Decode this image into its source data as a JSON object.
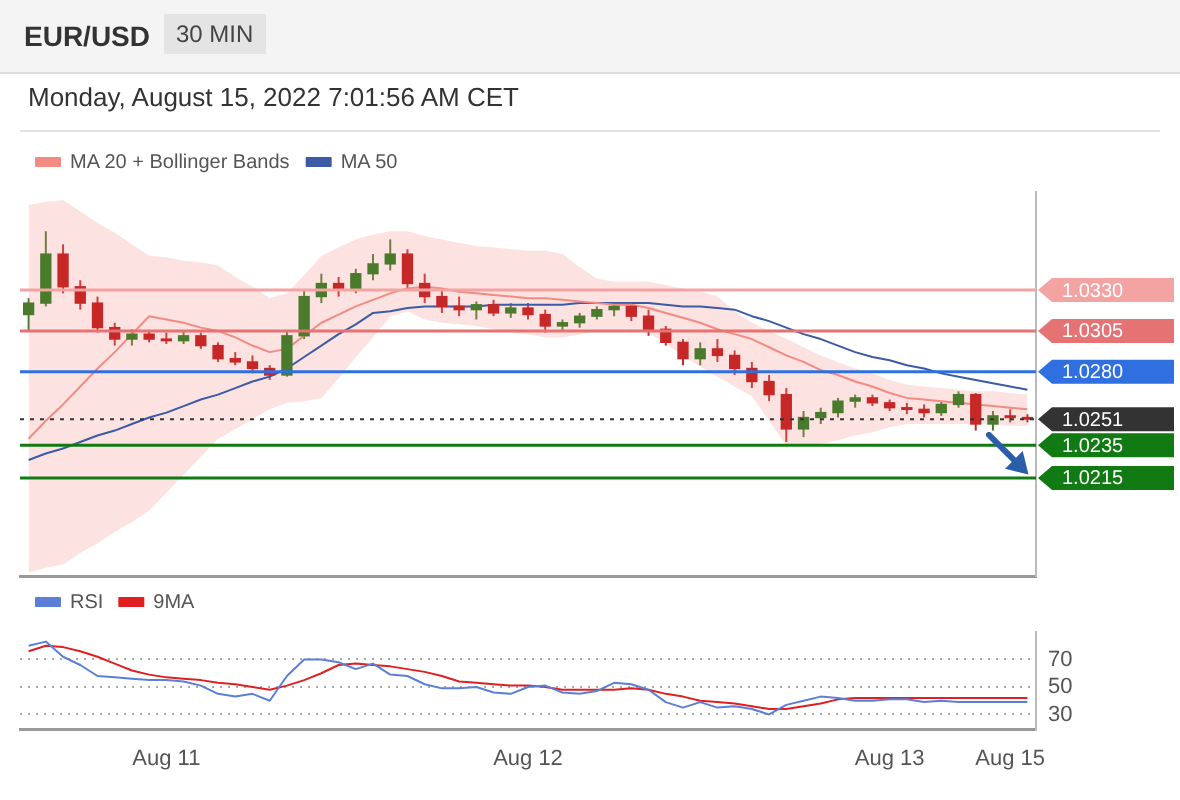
{
  "chart_data": [
    {
      "type": "candlestick",
      "title": "EUR/USD",
      "subtitle": "30 MIN",
      "annotations": [
        "Monday, August 15, 2022 7:01:56 AM CET"
      ],
      "categories": [
        null,
        null,
        null,
        null,
        null,
        null,
        null,
        null,
        null,
        null,
        null,
        null,
        null,
        null,
        null,
        null,
        null,
        null,
        null,
        null,
        null,
        null,
        null,
        null,
        null,
        null,
        null,
        null,
        null,
        null,
        null,
        null,
        null,
        null,
        null,
        null,
        null,
        null,
        null,
        null,
        null,
        null,
        null,
        null,
        null,
        null,
        null,
        null,
        null,
        null,
        null,
        null,
        null,
        null,
        null,
        null,
        null,
        null,
        null
      ],
      "ohlc": [
        [
          1.0315,
          1.0325,
          1.0305,
          1.0322
        ],
        [
          1.0322,
          1.0366,
          1.032,
          1.0352
        ],
        [
          1.0352,
          1.0358,
          1.0328,
          1.0332
        ],
        [
          1.0332,
          1.0336,
          1.0318,
          1.0322
        ],
        [
          1.0322,
          1.0326,
          1.0304,
          1.0307
        ],
        [
          1.0307,
          1.031,
          1.0296,
          1.03
        ],
        [
          1.03,
          1.0306,
          1.0296,
          1.0303
        ],
        [
          1.0303,
          1.0305,
          1.0298,
          1.03
        ],
        [
          1.03,
          1.0304,
          1.0297,
          1.0299
        ],
        [
          1.0299,
          1.0305,
          1.0297,
          1.0302
        ],
        [
          1.0302,
          1.0304,
          1.0294,
          1.0296
        ],
        [
          1.0296,
          1.0298,
          1.0286,
          1.0288
        ],
        [
          1.0288,
          1.0292,
          1.0284,
          1.0286
        ],
        [
          1.0286,
          1.029,
          1.0279,
          1.0282
        ],
        [
          1.0282,
          1.0284,
          1.0275,
          1.0278
        ],
        [
          1.0278,
          1.0305,
          1.0277,
          1.0302
        ],
        [
          1.0302,
          1.033,
          1.03,
          1.0326
        ],
        [
          1.0326,
          1.034,
          1.0322,
          1.0334
        ],
        [
          1.0334,
          1.0338,
          1.0326,
          1.033
        ],
        [
          1.033,
          1.0343,
          1.0328,
          1.034
        ],
        [
          1.034,
          1.0352,
          1.0336,
          1.0346
        ],
        [
          1.0346,
          1.0361,
          1.0342,
          1.0352
        ],
        [
          1.0352,
          1.0355,
          1.033,
          1.0334
        ],
        [
          1.0334,
          1.034,
          1.0322,
          1.0326
        ],
        [
          1.0326,
          1.033,
          1.0316,
          1.032
        ],
        [
          1.032,
          1.0326,
          1.0314,
          1.0318
        ],
        [
          1.0318,
          1.0323,
          1.0312,
          1.0321
        ],
        [
          1.0321,
          1.0324,
          1.0314,
          1.0316
        ],
        [
          1.0316,
          1.0322,
          1.0313,
          1.0319
        ],
        [
          1.0319,
          1.0322,
          1.0312,
          1.0315
        ],
        [
          1.0315,
          1.0318,
          1.0304,
          1.0308
        ],
        [
          1.0308,
          1.0312,
          1.0305,
          1.031
        ],
        [
          1.031,
          1.0316,
          1.0307,
          1.0314
        ],
        [
          1.0314,
          1.032,
          1.0312,
          1.0318
        ],
        [
          1.0318,
          1.0322,
          1.0314,
          1.032
        ],
        [
          1.032,
          1.0322,
          1.0311,
          1.0314
        ],
        [
          1.0314,
          1.0318,
          1.0302,
          1.0306
        ],
        [
          1.0306,
          1.0308,
          1.0296,
          1.0298
        ],
        [
          1.0298,
          1.03,
          1.0284,
          1.0288
        ],
        [
          1.0288,
          1.0298,
          1.0284,
          1.0294
        ],
        [
          1.0294,
          1.03,
          1.0286,
          1.029
        ],
        [
          1.029,
          1.0293,
          1.0278,
          1.0282
        ],
        [
          1.0282,
          1.0286,
          1.027,
          1.0274
        ],
        [
          1.0274,
          1.0278,
          1.0262,
          1.0266
        ],
        [
          1.0266,
          1.027,
          1.0237,
          1.0245
        ],
        [
          1.0245,
          1.0256,
          1.024,
          1.0252
        ],
        [
          1.0252,
          1.0258,
          1.0248,
          1.0255
        ],
        [
          1.0255,
          1.0264,
          1.0252,
          1.0262
        ],
        [
          1.0262,
          1.0266,
          1.0258,
          1.0264
        ],
        [
          1.0264,
          1.0266,
          1.0259,
          1.0261
        ],
        [
          1.0261,
          1.0263,
          1.0256,
          1.0258
        ],
        [
          1.0258,
          1.0261,
          1.0254,
          1.0257
        ],
        [
          1.0257,
          1.026,
          1.0252,
          1.0255
        ],
        [
          1.0255,
          1.0262,
          1.0253,
          1.026
        ],
        [
          1.026,
          1.0268,
          1.0258,
          1.0266
        ],
        [
          1.0266,
          1.0267,
          1.0244,
          1.0248
        ],
        [
          1.0248,
          1.0256,
          1.0244,
          1.0253
        ],
        [
          1.0253,
          1.0257,
          1.0249,
          1.0252
        ],
        [
          1.0252,
          1.0254,
          1.0249,
          1.0251
        ]
      ],
      "colors": [
        "#4a7a2c",
        "#4a7a2c",
        "#c62828",
        "#c62828",
        "#c62828",
        "#c62828",
        "#4a7a2c",
        "#c62828",
        "#c62828",
        "#4a7a2c",
        "#c62828",
        "#c62828",
        "#c62828",
        "#c62828",
        "#c62828",
        "#4a7a2c",
        "#4a7a2c",
        "#4a7a2c",
        "#c62828",
        "#4a7a2c",
        "#4a7a2c",
        "#4a7a2c",
        "#c62828",
        "#c62828",
        "#c62828",
        "#c62828",
        "#4a7a2c",
        "#c62828",
        "#4a7a2c",
        "#c62828",
        "#c62828",
        "#4a7a2c",
        "#4a7a2c",
        "#4a7a2c",
        "#4a7a2c",
        "#c62828",
        "#c62828",
        "#c62828",
        "#c62828",
        "#4a7a2c",
        "#c62828",
        "#c62828",
        "#c62828",
        "#c62828",
        "#c62828",
        "#4a7a2c",
        "#4a7a2c",
        "#4a7a2c",
        "#4a7a2c",
        "#c62828",
        "#c62828",
        "#c62828",
        "#c62828",
        "#4a7a2c",
        "#4a7a2c",
        "#c62828",
        "#4a7a2c",
        "#c62828",
        "#c62828"
      ],
      "series": [
        {
          "name": "MA 20 + Bollinger Bands",
          "type": "line",
          "color": "#f28b82",
          "values": [
            1.0239,
            1.025,
            1.026,
            1.0271,
            1.0282,
            1.0292,
            1.0303,
            1.0314,
            1.0312,
            1.031,
            1.0307,
            1.0305,
            1.0301,
            1.0296,
            1.0292,
            1.0294,
            1.0302,
            1.031,
            1.0315,
            1.032,
            1.0324,
            1.0328,
            1.0331,
            1.0332,
            1.0331,
            1.0329,
            1.0328,
            1.0327,
            1.0326,
            1.0325,
            1.0325,
            1.0324,
            1.0323,
            1.0322,
            1.0321,
            1.0321,
            1.0319,
            1.0316,
            1.0313,
            1.031,
            1.0306,
            1.0303,
            1.03,
            1.0295,
            1.029,
            1.0286,
            1.0281,
            1.0278,
            1.0274,
            1.0271,
            1.0267,
            1.0264,
            1.0263,
            1.0262,
            1.0261,
            1.026,
            1.0259,
            1.0258,
            1.0257
          ],
          "lower": [
            1.0157,
            1.016,
            1.0162,
            1.0169,
            1.0175,
            1.0182,
            1.0188,
            1.0195,
            1.0206,
            1.0217,
            1.0228,
            1.0239,
            1.0245,
            1.0251,
            1.0257,
            1.0261,
            1.0262,
            1.0264,
            1.0276,
            1.0289,
            1.0301,
            1.0314,
            1.0317,
            1.0312,
            1.031,
            1.0309,
            1.0308,
            1.0306,
            1.0304,
            1.0303,
            1.0301,
            1.0301,
            1.0303,
            1.0305,
            1.0305,
            1.0305,
            1.0304,
            1.0297,
            1.029,
            1.0283,
            1.0277,
            1.0271,
            1.0265,
            1.025,
            1.0235,
            1.0235,
            1.0236,
            1.0238,
            1.0241,
            1.0243,
            1.0246,
            1.0248,
            1.0248,
            1.0248,
            1.0248,
            1.0248,
            1.0248,
            1.0247,
            1.0247
          ],
          "upper": [
            1.0382,
            1.0384,
            1.0385,
            1.0378,
            1.0371,
            1.0365,
            1.0358,
            1.0351,
            1.035,
            1.0348,
            1.0347,
            1.0345,
            1.0338,
            1.0332,
            1.0325,
            1.0328,
            1.0339,
            1.0351,
            1.0356,
            1.0361,
            1.0364,
            1.0366,
            1.0366,
            1.0363,
            1.0361,
            1.0359,
            1.0357,
            1.0356,
            1.0355,
            1.0354,
            1.0354,
            1.0352,
            1.0344,
            1.0337,
            1.0335,
            1.0335,
            1.0335,
            1.0333,
            1.0331,
            1.0329,
            1.0326,
            1.0317,
            1.031,
            1.0305,
            1.03,
            1.0295,
            1.029,
            1.0286,
            1.0282,
            1.0279,
            1.0275,
            1.0272,
            1.0271,
            1.027,
            1.0269,
            1.0268,
            1.0268,
            1.0267,
            1.0266
          ]
        },
        {
          "name": "MA 50",
          "type": "line",
          "color": "#3b5ba5",
          "values": [
            1.0226,
            1.023,
            1.0233,
            1.0237,
            1.0241,
            1.0244,
            1.0248,
            1.0252,
            1.0255,
            1.0259,
            1.0263,
            1.0266,
            1.027,
            1.0274,
            1.0277,
            1.0282,
            1.0289,
            1.0296,
            1.0303,
            1.0309,
            1.0316,
            1.0317,
            1.0319,
            1.032,
            1.032,
            1.032,
            1.032,
            1.0321,
            1.0321,
            1.0321,
            1.0321,
            1.0321,
            1.0322,
            1.0322,
            1.0322,
            1.0322,
            1.0322,
            1.0321,
            1.032,
            1.032,
            1.0319,
            1.0318,
            1.0314,
            1.0311,
            1.0307,
            1.0303,
            1.03,
            1.0296,
            1.0292,
            1.0289,
            1.0287,
            1.0284,
            1.0282,
            1.0279,
            1.0277,
            1.0275,
            1.0273,
            1.0271,
            1.0269
          ]
        }
      ],
      "ref_lines": [
        {
          "axis": "y",
          "value": 1.033,
          "label": "1.0330",
          "color": "#f4a3a3"
        },
        {
          "axis": "y",
          "value": 1.0305,
          "label": "1.0305",
          "color": "#e57373"
        },
        {
          "axis": "y",
          "value": 1.028,
          "label": "1.0280",
          "color": "#2f6fe0"
        },
        {
          "axis": "y",
          "value": 1.0251,
          "label": "1.0251",
          "color": "#333333",
          "line_style": "dotted"
        },
        {
          "axis": "y",
          "value": 1.0235,
          "label": "1.0235",
          "color": "#127a12"
        },
        {
          "axis": "y",
          "value": 1.0215,
          "label": "1.0215",
          "color": "#127a12"
        }
      ],
      "ylim": [
        1.0155,
        1.039
      ],
      "legend": "top left"
    },
    {
      "type": "line",
      "categories": [
        null,
        null,
        null,
        null,
        null,
        null,
        null,
        null,
        "Aug 11",
        null,
        null,
        null,
        null,
        null,
        null,
        null,
        null,
        null,
        null,
        null,
        null,
        null,
        null,
        null,
        null,
        null,
        null,
        null,
        null,
        "Aug 12",
        null,
        null,
        null,
        null,
        null,
        null,
        null,
        null,
        null,
        null,
        null,
        null,
        null,
        null,
        null,
        null,
        null,
        null,
        null,
        null,
        "Aug 13",
        null,
        null,
        null,
        null,
        null,
        null,
        "Aug 15",
        null
      ],
      "series": [
        {
          "name": "RSI",
          "color": "#5b7fd6",
          "values": [
            80,
            83,
            72,
            66,
            58,
            57,
            56,
            55,
            55,
            54,
            51,
            45,
            43,
            45,
            40,
            58,
            70,
            70,
            68,
            63,
            67,
            59,
            58,
            52,
            49,
            49,
            50,
            46,
            45,
            50,
            51,
            46,
            45,
            47,
            53,
            52,
            48,
            39,
            35,
            39,
            35,
            36,
            34,
            30,
            37,
            40,
            43,
            42,
            40,
            40,
            41,
            41,
            39,
            40,
            39,
            39,
            39,
            39,
            39
          ]
        },
        {
          "name": "9MA",
          "color": "#e02020",
          "values": [
            76,
            80,
            79,
            76,
            72,
            67,
            62,
            59,
            57,
            56,
            55,
            53,
            52,
            50,
            48,
            51,
            55,
            60,
            66,
            67,
            66,
            65,
            63,
            61,
            58,
            54,
            53,
            52,
            51,
            51,
            50,
            48,
            48,
            48,
            48,
            49,
            48,
            45,
            43,
            40,
            39,
            38,
            36,
            34,
            34,
            36,
            38,
            41,
            42,
            42,
            42,
            42,
            42,
            42,
            42,
            42,
            42,
            42,
            42
          ]
        }
      ],
      "ylim": [
        19,
        90
      ],
      "yticks": [
        70,
        50,
        30
      ],
      "grid": "y",
      "legend": "top left"
    }
  ]
}
